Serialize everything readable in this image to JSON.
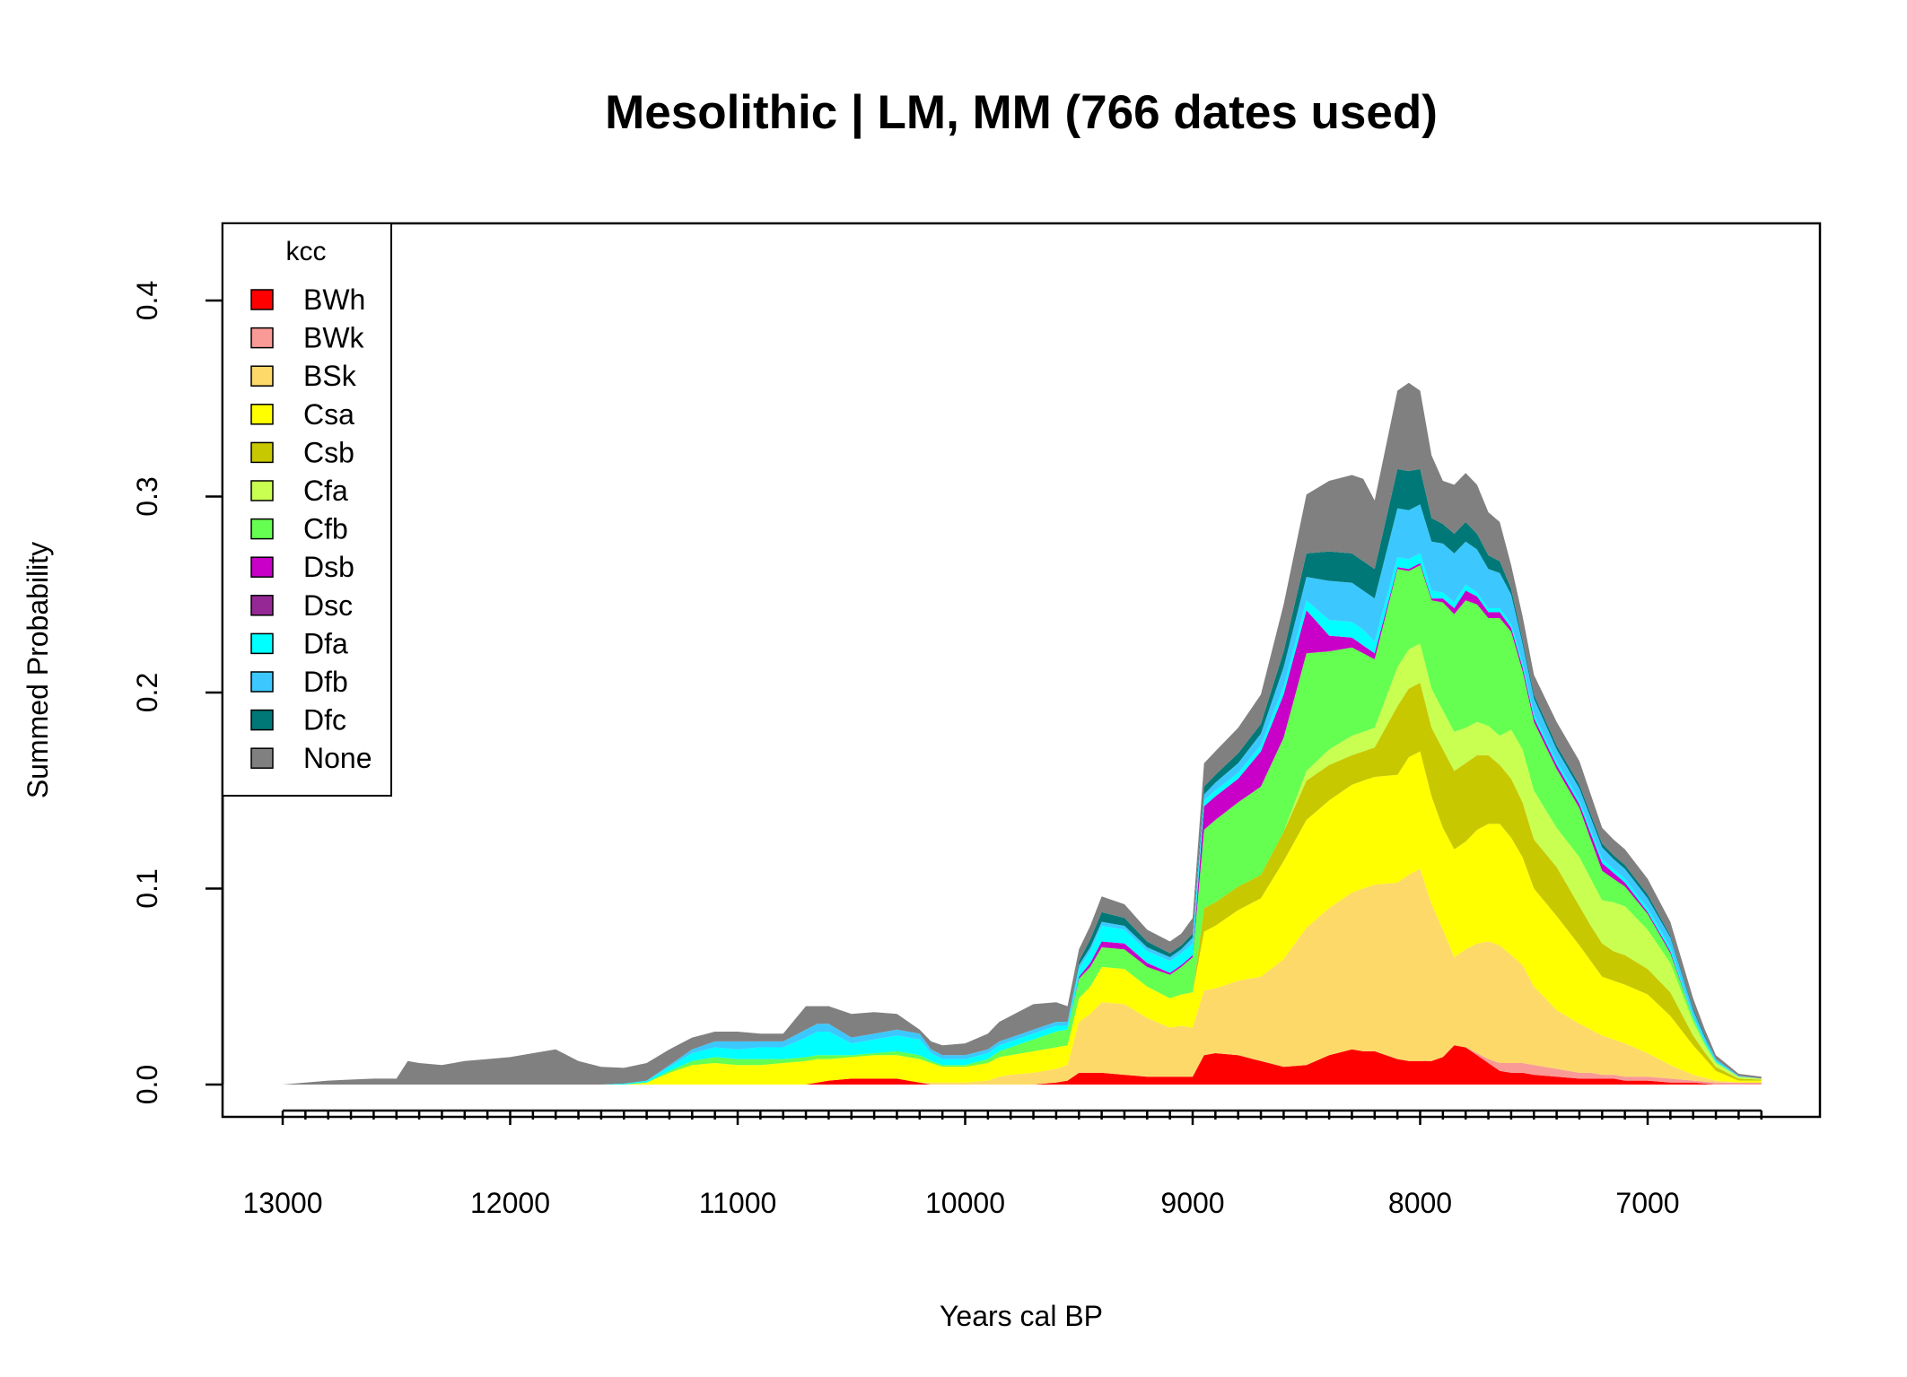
{
  "chart_data": {
    "type": "area",
    "stacked": true,
    "title": "Mesolithic | LM, MM (766 dates used)",
    "xlabel": "Years cal BP",
    "ylabel": "Summed Probability",
    "xlim": [
      13000,
      6500
    ],
    "x_reversed": true,
    "ylim": [
      0,
      0.43
    ],
    "x_ticks": [
      13000,
      12000,
      11000,
      10000,
      9000,
      8000,
      7000
    ],
    "y_ticks": [
      0.0,
      0.1,
      0.2,
      0.3,
      0.4
    ],
    "x_tick_labels": [
      "13000",
      "12000",
      "11000",
      "10000",
      "9000",
      "8000",
      "7000"
    ],
    "y_tick_labels": [
      "0.0",
      "0.1",
      "0.2",
      "0.3",
      "0.4"
    ],
    "legend": {
      "title": "kcc",
      "position": "top-left"
    },
    "x": [
      13000,
      12800,
      12600,
      12500,
      12450,
      12400,
      12300,
      12200,
      12100,
      12000,
      11900,
      11800,
      11700,
      11600,
      11500,
      11400,
      11300,
      11200,
      11100,
      11000,
      10900,
      10800,
      10700,
      10650,
      10600,
      10500,
      10400,
      10300,
      10200,
      10150,
      10100,
      10000,
      9900,
      9850,
      9800,
      9700,
      9600,
      9550,
      9500,
      9450,
      9400,
      9300,
      9200,
      9100,
      9050,
      9000,
      8950,
      8900,
      8800,
      8700,
      8600,
      8500,
      8400,
      8300,
      8250,
      8200,
      8100,
      8050,
      8000,
      7950,
      7900,
      7850,
      7800,
      7750,
      7700,
      7650,
      7600,
      7550,
      7500,
      7400,
      7300,
      7250,
      7200,
      7150,
      7100,
      7000,
      6900,
      6800,
      6750,
      6700,
      6600,
      6500
    ],
    "series": [
      {
        "name": "BWh",
        "color": "#ff0000",
        "values": [
          0,
          0,
          0,
          0,
          0,
          0,
          0,
          0,
          0,
          0,
          0,
          0,
          0,
          0,
          0,
          0,
          0,
          0,
          0,
          0,
          0,
          0,
          0,
          0.001,
          0.002,
          0.003,
          0.003,
          0.003,
          0.001,
          0,
          0,
          0,
          0,
          0,
          0,
          0,
          0.001,
          0.002,
          0.006,
          0.006,
          0.006,
          0.005,
          0.004,
          0.004,
          0.004,
          0.004,
          0.015,
          0.016,
          0.015,
          0.012,
          0.009,
          0.01,
          0.015,
          0.018,
          0.017,
          0.017,
          0.013,
          0.012,
          0.012,
          0.012,
          0.014,
          0.02,
          0.019,
          0.015,
          0.011,
          0.007,
          0.006,
          0.006,
          0.005,
          0.004,
          0.003,
          0.003,
          0.003,
          0.003,
          0.002,
          0.002,
          0.001,
          0.001,
          0.0005,
          0,
          0,
          0
        ]
      },
      {
        "name": "BWk",
        "color": "#f99a97",
        "values": [
          0,
          0,
          0,
          0,
          0,
          0,
          0,
          0,
          0,
          0,
          0,
          0,
          0,
          0,
          0,
          0,
          0,
          0,
          0,
          0,
          0,
          0,
          0,
          0,
          0,
          0,
          0,
          0,
          0,
          0,
          0,
          0,
          0,
          0,
          0,
          0,
          0,
          0,
          0,
          0,
          0,
          0,
          0,
          0,
          0,
          0,
          0,
          0,
          0,
          0,
          0,
          0,
          0,
          0,
          0,
          0,
          0,
          0,
          0,
          0,
          0,
          0,
          0,
          0.001,
          0.002,
          0.004,
          0.005,
          0.005,
          0.005,
          0.004,
          0.003,
          0.003,
          0.002,
          0.002,
          0.002,
          0.002,
          0.002,
          0.001,
          0.001,
          0.001,
          0.001,
          0.001
        ]
      },
      {
        "name": "BSk",
        "color": "#fdd96a",
        "values": [
          0,
          0,
          0,
          0,
          0,
          0,
          0,
          0,
          0,
          0,
          0,
          0,
          0,
          0,
          0,
          0,
          0,
          0,
          0,
          0,
          0,
          0,
          0,
          0,
          0,
          0,
          0,
          0,
          0,
          0.001,
          0.001,
          0.001,
          0.002,
          0.004,
          0.005,
          0.006,
          0.007,
          0.008,
          0.026,
          0.03,
          0.036,
          0.036,
          0.03,
          0.025,
          0.026,
          0.025,
          0.033,
          0.033,
          0.038,
          0.043,
          0.055,
          0.07,
          0.075,
          0.08,
          0.083,
          0.085,
          0.09,
          0.095,
          0.098,
          0.08,
          0.065,
          0.045,
          0.05,
          0.056,
          0.06,
          0.06,
          0.055,
          0.05,
          0.04,
          0.03,
          0.025,
          0.022,
          0.02,
          0.018,
          0.017,
          0.012,
          0.007,
          0.003,
          0.002,
          0.001,
          0,
          0
        ]
      },
      {
        "name": "Csa",
        "color": "#ffff00",
        "values": [
          0,
          0,
          0,
          0,
          0,
          0,
          0,
          0,
          0,
          0,
          0,
          0,
          0,
          0,
          0,
          0.001,
          0.006,
          0.01,
          0.011,
          0.01,
          0.01,
          0.011,
          0.012,
          0.012,
          0.011,
          0.011,
          0.012,
          0.012,
          0.012,
          0.01,
          0.008,
          0.008,
          0.009,
          0.01,
          0.01,
          0.011,
          0.011,
          0.01,
          0.012,
          0.014,
          0.018,
          0.018,
          0.016,
          0.015,
          0.016,
          0.018,
          0.03,
          0.032,
          0.036,
          0.04,
          0.05,
          0.055,
          0.055,
          0.055,
          0.055,
          0.055,
          0.055,
          0.06,
          0.06,
          0.055,
          0.052,
          0.055,
          0.055,
          0.058,
          0.06,
          0.062,
          0.06,
          0.055,
          0.05,
          0.048,
          0.04,
          0.035,
          0.03,
          0.03,
          0.03,
          0.03,
          0.025,
          0.015,
          0.01,
          0.005,
          0.001,
          0.001
        ]
      },
      {
        "name": "Csb",
        "color": "#c8c800",
        "values": [
          0,
          0,
          0,
          0,
          0,
          0,
          0,
          0,
          0,
          0,
          0,
          0,
          0,
          0,
          0,
          0,
          0,
          0,
          0,
          0,
          0,
          0,
          0,
          0,
          0,
          0,
          0,
          0,
          0,
          0,
          0,
          0,
          0,
          0,
          0,
          0,
          0,
          0,
          0,
          0,
          0,
          0,
          0,
          0,
          0,
          0,
          0.012,
          0.012,
          0.012,
          0.012,
          0.015,
          0.02,
          0.018,
          0.015,
          0.015,
          0.015,
          0.035,
          0.035,
          0.035,
          0.035,
          0.04,
          0.04,
          0.04,
          0.038,
          0.035,
          0.03,
          0.03,
          0.028,
          0.025,
          0.025,
          0.02,
          0.018,
          0.017,
          0.015,
          0.015,
          0.013,
          0.012,
          0.005,
          0.003,
          0.002,
          0.001,
          0.0005
        ]
      },
      {
        "name": "Cfa",
        "color": "#c8ff50",
        "values": [
          0,
          0,
          0,
          0,
          0,
          0,
          0,
          0,
          0,
          0,
          0,
          0,
          0,
          0,
          0,
          0,
          0,
          0,
          0,
          0,
          0,
          0,
          0,
          0,
          0,
          0,
          0,
          0,
          0,
          0,
          0,
          0,
          0,
          0,
          0,
          0,
          0,
          0,
          0,
          0,
          0,
          0,
          0,
          0,
          0,
          0,
          0,
          0,
          0,
          0,
          0,
          0.005,
          0.008,
          0.01,
          0.01,
          0.01,
          0.02,
          0.02,
          0.02,
          0.02,
          0.02,
          0.02,
          0.018,
          0.017,
          0.015,
          0.015,
          0.025,
          0.027,
          0.025,
          0.02,
          0.025,
          0.024,
          0.022,
          0.025,
          0.025,
          0.02,
          0.015,
          0.007,
          0.004,
          0.002,
          0.001,
          0.0005
        ]
      },
      {
        "name": "Cfb",
        "color": "#64ff50",
        "values": [
          0,
          0,
          0,
          0,
          0,
          0,
          0,
          0,
          0,
          0,
          0,
          0,
          0,
          0,
          0,
          0,
          0.001,
          0.002,
          0.003,
          0.003,
          0.003,
          0.002,
          0.002,
          0.002,
          0.002,
          0.001,
          0.001,
          0.002,
          0.002,
          0.001,
          0.001,
          0.001,
          0.002,
          0.003,
          0.004,
          0.006,
          0.008,
          0.008,
          0.01,
          0.01,
          0.01,
          0.01,
          0.01,
          0.012,
          0.014,
          0.018,
          0.04,
          0.042,
          0.043,
          0.045,
          0.048,
          0.06,
          0.05,
          0.045,
          0.04,
          0.035,
          0.05,
          0.04,
          0.04,
          0.045,
          0.055,
          0.06,
          0.065,
          0.06,
          0.055,
          0.06,
          0.05,
          0.04,
          0.035,
          0.03,
          0.025,
          0.02,
          0.015,
          0.012,
          0.01,
          0.008,
          0.005,
          0.002,
          0.001,
          0.0005,
          0,
          0
        ]
      },
      {
        "name": "Dsb",
        "color": "#c800c8",
        "values": [
          0,
          0,
          0,
          0,
          0,
          0,
          0,
          0,
          0,
          0,
          0,
          0,
          0,
          0,
          0,
          0,
          0,
          0,
          0,
          0,
          0,
          0,
          0,
          0,
          0,
          0,
          0,
          0,
          0,
          0,
          0,
          0,
          0,
          0,
          0,
          0,
          0,
          0,
          0.001,
          0.002,
          0.003,
          0.003,
          0.002,
          0.001,
          0.001,
          0.001,
          0.012,
          0.012,
          0.012,
          0.018,
          0.022,
          0.022,
          0.008,
          0.005,
          0.004,
          0.003,
          0.001,
          0.001,
          0.001,
          0.001,
          0.002,
          0.003,
          0.005,
          0.004,
          0.003,
          0.003,
          0.002,
          0.002,
          0.002,
          0.002,
          0.002,
          0.003,
          0.004,
          0.003,
          0.002,
          0.001,
          0.001,
          0,
          0,
          0,
          0,
          0
        ]
      },
      {
        "name": "Dsc",
        "color": "#962896",
        "values": [
          0,
          0,
          0,
          0,
          0,
          0,
          0,
          0,
          0,
          0,
          0,
          0,
          0,
          0,
          0,
          0,
          0,
          0,
          0,
          0,
          0,
          0,
          0,
          0,
          0,
          0,
          0,
          0,
          0,
          0,
          0,
          0,
          0,
          0,
          0,
          0,
          0,
          0,
          0,
          0,
          0,
          0,
          0,
          0,
          0,
          0,
          0,
          0,
          0,
          0,
          0,
          0,
          0,
          0,
          0,
          0,
          0,
          0,
          0,
          0,
          0,
          0,
          0,
          0,
          0,
          0,
          0,
          0,
          0,
          0,
          0,
          0,
          0,
          0,
          0,
          0,
          0,
          0,
          0,
          0,
          0,
          0
        ]
      },
      {
        "name": "Dfa",
        "color": "#00ffff",
        "values": [
          0,
          0,
          0,
          0,
          0,
          0,
          0,
          0,
          0,
          0,
          0,
          0,
          0,
          0,
          0.0005,
          0.001,
          0.002,
          0.004,
          0.005,
          0.005,
          0.006,
          0.006,
          0.01,
          0.012,
          0.012,
          0.006,
          0.007,
          0.008,
          0.008,
          0.004,
          0.003,
          0.003,
          0.003,
          0.003,
          0.003,
          0.003,
          0.003,
          0.002,
          0.004,
          0.006,
          0.008,
          0.007,
          0.006,
          0.006,
          0.006,
          0.006,
          0.003,
          0.003,
          0.003,
          0.003,
          0.004,
          0.005,
          0.008,
          0.008,
          0.008,
          0.006,
          0.005,
          0.005,
          0.005,
          0.004,
          0.003,
          0.003,
          0.003,
          0.002,
          0.002,
          0.002,
          0.002,
          0.002,
          0.002,
          0.002,
          0.002,
          0.002,
          0.002,
          0.002,
          0.002,
          0.002,
          0.002,
          0.001,
          0.001,
          0.0005,
          0,
          0
        ]
      },
      {
        "name": "Dfb",
        "color": "#3cc8ff",
        "values": [
          0,
          0,
          0,
          0,
          0,
          0,
          0,
          0,
          0,
          0,
          0,
          0,
          0,
          0,
          0,
          0,
          0.001,
          0.002,
          0.003,
          0.004,
          0.003,
          0.003,
          0.004,
          0.004,
          0.004,
          0.003,
          0.003,
          0.003,
          0.003,
          0.002,
          0.002,
          0.002,
          0.002,
          0.002,
          0.002,
          0.002,
          0.002,
          0.002,
          0.002,
          0.002,
          0.002,
          0.002,
          0.002,
          0.002,
          0.002,
          0.003,
          0.003,
          0.004,
          0.005,
          0.006,
          0.01,
          0.012,
          0.02,
          0.02,
          0.02,
          0.022,
          0.025,
          0.025,
          0.025,
          0.025,
          0.025,
          0.025,
          0.022,
          0.022,
          0.02,
          0.018,
          0.015,
          0.01,
          0.008,
          0.006,
          0.006,
          0.006,
          0.006,
          0.005,
          0.005,
          0.005,
          0.005,
          0.003,
          0.002,
          0.001,
          0.0005,
          0
        ]
      },
      {
        "name": "Dfc",
        "color": "#007878",
        "values": [
          0,
          0,
          0,
          0,
          0,
          0,
          0,
          0,
          0,
          0,
          0,
          0,
          0,
          0,
          0,
          0,
          0,
          0,
          0,
          0,
          0,
          0,
          0,
          0,
          0,
          0,
          0,
          0,
          0,
          0,
          0,
          0,
          0,
          0,
          0,
          0,
          0,
          0,
          0.002,
          0.004,
          0.005,
          0.004,
          0.003,
          0.002,
          0.002,
          0.002,
          0.004,
          0.004,
          0.005,
          0.005,
          0.008,
          0.012,
          0.015,
          0.015,
          0.015,
          0.015,
          0.02,
          0.02,
          0.018,
          0.012,
          0.01,
          0.01,
          0.01,
          0.008,
          0.007,
          0.006,
          0.003,
          0.002,
          0.002,
          0.002,
          0.002,
          0.002,
          0.002,
          0.002,
          0.002,
          0.002,
          0.001,
          0.001,
          0.001,
          0,
          0,
          0
        ]
      },
      {
        "name": "None",
        "color": "#808080",
        "values": [
          0,
          0.002,
          0.003,
          0.003,
          0.012,
          0.011,
          0.01,
          0.012,
          0.013,
          0.014,
          0.016,
          0.018,
          0.012,
          0.009,
          0.008,
          0.009,
          0.008,
          0.006,
          0.005,
          0.005,
          0.004,
          0.004,
          0.012,
          0.009,
          0.009,
          0.012,
          0.011,
          0.008,
          0.002,
          0.004,
          0.005,
          0.006,
          0.008,
          0.01,
          0.011,
          0.013,
          0.01,
          0.008,
          0.006,
          0.007,
          0.008,
          0.007,
          0.006,
          0.006,
          0.006,
          0.008,
          0.012,
          0.012,
          0.013,
          0.015,
          0.024,
          0.03,
          0.036,
          0.04,
          0.042,
          0.035,
          0.04,
          0.045,
          0.04,
          0.032,
          0.022,
          0.025,
          0.025,
          0.025,
          0.022,
          0.02,
          0.012,
          0.012,
          0.01,
          0.012,
          0.012,
          0.01,
          0.008,
          0.008,
          0.008,
          0.008,
          0.007,
          0.005,
          0.003,
          0.002,
          0.001,
          0.001
        ]
      }
    ]
  }
}
